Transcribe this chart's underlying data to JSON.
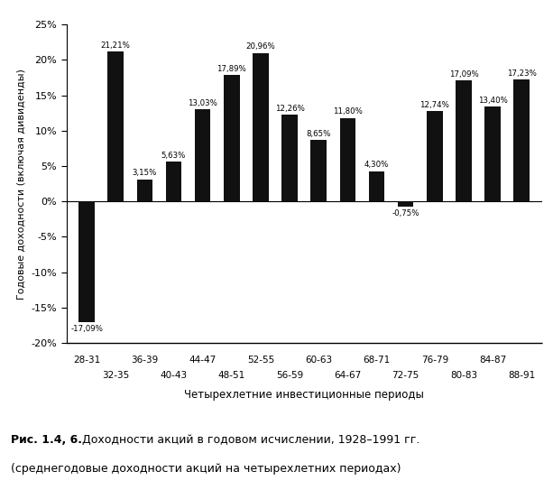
{
  "categories": [
    "28-31",
    "32-35",
    "36-39",
    "40-43",
    "44-47",
    "48-51",
    "52-55",
    "56-59",
    "60-63",
    "64-67",
    "68-71",
    "72-75",
    "76-79",
    "80-83",
    "84-87",
    "88-91"
  ],
  "values": [
    -17.09,
    21.21,
    3.15,
    5.63,
    13.03,
    17.89,
    20.96,
    12.26,
    8.65,
    11.8,
    4.3,
    -0.75,
    12.74,
    17.09,
    13.4,
    17.23
  ],
  "labels": [
    "-17,09%",
    "21,21%",
    "3,15%",
    "5,63%",
    "13,03%",
    "17,89%",
    "20,96%",
    "12,26%",
    "8,65%",
    "11,80%",
    "4,30%",
    "-0,75%",
    "12,74%",
    "17,09%",
    "13,40%",
    "17,23%"
  ],
  "bar_color": "#111111",
  "background_color": "#ffffff",
  "ylabel": "Годовые доходности (включая дивиденды)",
  "xlabel": "Четырехлетние инвестиционные периоды",
  "caption_bold": "Рис. 1.4, 6.",
  "caption_normal": "  Доходности акций в годовом исчислении, 1928–1991 гг.",
  "caption_line2": "(среднегодовые доходности акций на четырехлетних периодах)",
  "ylim": [
    -20,
    25
  ],
  "yticks": [
    -20,
    -15,
    -10,
    -5,
    0,
    5,
    10,
    15,
    20,
    25
  ],
  "ytick_labels": [
    "-20%",
    "-15%",
    "-10%",
    "-5%",
    "0%",
    "5%",
    "10%",
    "15%",
    "20%",
    "25%"
  ],
  "top_row_indices": [
    0,
    2,
    4,
    6,
    8,
    10,
    12,
    14
  ],
  "bottom_row_indices": [
    1,
    3,
    5,
    7,
    9,
    11,
    13,
    15
  ],
  "top_row_labels": [
    "28-31",
    "36-39",
    "44-47",
    "52-55",
    "60-63",
    "68-71",
    "76-79",
    "84-87"
  ],
  "bottom_row_labels": [
    "32-35",
    "40-43",
    "48-51",
    "56-59",
    "64-67",
    "72-75",
    "80-83",
    "88-91"
  ]
}
